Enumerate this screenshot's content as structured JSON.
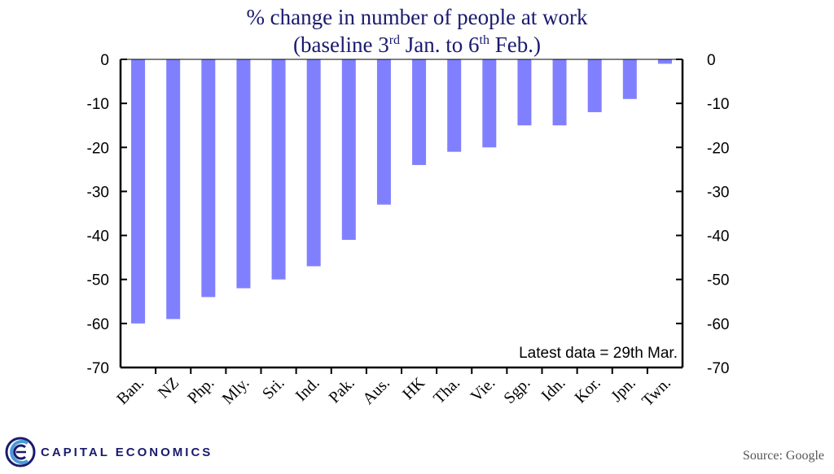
{
  "title": {
    "line1": "% change in number of people at work",
    "line2_a": "(baseline 3",
    "line2_sup1": "rd",
    "line2_b": " Jan. to 6",
    "line2_sup2": "th",
    "line2_c": " Feb.)"
  },
  "chart_data": {
    "type": "bar",
    "categories": [
      "Ban.",
      "NZ",
      "Php.",
      "Mly.",
      "Sri.",
      "Ind.",
      "Pak.",
      "Aus.",
      "HK",
      "Tha.",
      "Vie.",
      "Sgp.",
      "Idn.",
      "Kor.",
      "Jpn.",
      "Twn."
    ],
    "values": [
      -60,
      -59,
      -54,
      -52,
      -50,
      -47,
      -41,
      -33,
      -24,
      -21,
      -20,
      -15,
      -15,
      -12,
      -9,
      -1
    ],
    "ylim": [
      -70,
      0
    ],
    "yticks": [
      0,
      -10,
      -20,
      -30,
      -40,
      -50,
      -60,
      -70
    ],
    "ytick_labels": [
      "0",
      "-10",
      "-20",
      "-30",
      "-40",
      "-50",
      "-60",
      "-70"
    ],
    "bar_color": "#8080ff",
    "annotation": "Latest data = 29th  Mar.",
    "grid": false
  },
  "footer": {
    "logo_text": "CAPITAL ECONOMICS",
    "source": "Source: Google"
  }
}
